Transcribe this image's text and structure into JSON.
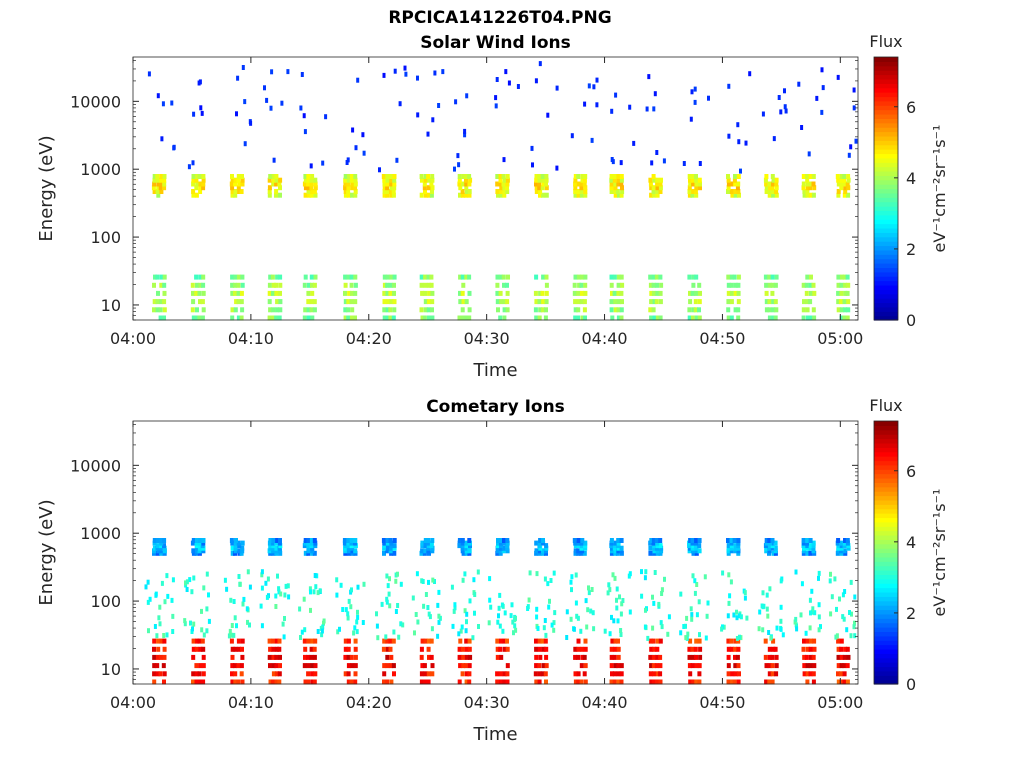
{
  "page_title": "RPCICA141226T04.PNG",
  "colors": {
    "colormap": [
      "#00008f",
      "#0000ff",
      "#007fff",
      "#00ffff",
      "#7fff7f",
      "#ffff00",
      "#ff7f00",
      "#ff0000",
      "#7f0000"
    ]
  },
  "chart_data": [
    {
      "type": "heatmap",
      "title": "Solar Wind Ions",
      "xlabel": "Time",
      "ylabel": "Energy (eV)",
      "x_ticks": [
        "04:00",
        "04:10",
        "04:20",
        "04:30",
        "04:40",
        "04:50",
        "05:00"
      ],
      "x_range_minutes": [
        0,
        61.5
      ],
      "y_scale": "log",
      "y_range_eV": [
        6,
        45000
      ],
      "y_ticks": [
        "10",
        "100",
        "1000",
        "10000"
      ],
      "colorbar": {
        "label": "Flux",
        "units": "eV⁻¹cm⁻²sr⁻¹s⁻¹",
        "range": [
          0,
          7.4
        ],
        "ticks": [
          "0",
          "2",
          "4",
          "6"
        ]
      },
      "sweep_minutes": [
        2.2,
        5.5,
        8.8,
        12.0,
        15.0,
        18.4,
        21.7,
        24.9,
        28.1,
        31.3,
        34.6,
        37.9,
        41.0,
        44.3,
        47.6,
        50.9,
        54.1,
        57.3,
        60.2
      ],
      "populations": [
        {
          "name": "solar wind peak",
          "energy_eV": [
            450,
            850
          ],
          "flux": 4.2
        },
        {
          "name": "low energy",
          "energy_eV": [
            7,
            28
          ],
          "flux": 3.5
        },
        {
          "name": "sparse high energy",
          "energy_eV": [
            1000,
            40000
          ],
          "flux": 1.0
        }
      ]
    },
    {
      "type": "heatmap",
      "title": "Cometary Ions",
      "xlabel": "Time",
      "ylabel": "Energy (eV)",
      "x_ticks": [
        "04:00",
        "04:10",
        "04:20",
        "04:30",
        "04:40",
        "04:50",
        "05:00"
      ],
      "x_range_minutes": [
        0,
        61.5
      ],
      "y_scale": "log",
      "y_range_eV": [
        6,
        45000
      ],
      "y_ticks": [
        "10",
        "100",
        "1000",
        "10000"
      ],
      "colorbar": {
        "label": "Flux",
        "units": "eV⁻¹cm⁻²sr⁻¹s⁻¹",
        "range": [
          0,
          7.4
        ],
        "ticks": [
          "0",
          "2",
          "4",
          "6"
        ]
      },
      "sweep_minutes": [
        2.2,
        5.5,
        8.8,
        12.0,
        15.0,
        18.4,
        21.7,
        24.9,
        28.1,
        31.3,
        34.6,
        37.9,
        41.0,
        44.3,
        47.6,
        50.9,
        54.1,
        57.3,
        60.2
      ],
      "populations": [
        {
          "name": "cometary low energy",
          "energy_eV": [
            7,
            28
          ],
          "flux": 6.0
        },
        {
          "name": "cometary tail",
          "energy_eV": [
            30,
            300
          ],
          "flux": 2.6
        },
        {
          "name": "solar wind peak",
          "energy_eV": [
            550,
            850
          ],
          "flux": 1.8
        }
      ]
    }
  ]
}
